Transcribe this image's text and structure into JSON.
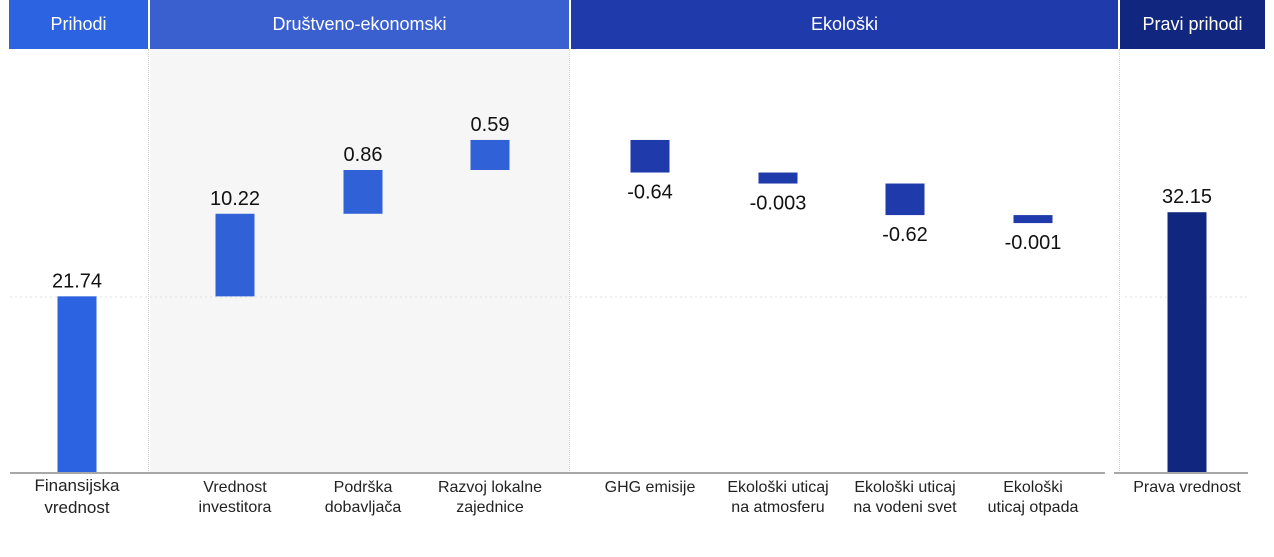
{
  "headers": {
    "prihodi": "Prihodi",
    "drustveno": "Društveno-ekonomski",
    "ekoloski": "Ekološki",
    "pravi": "Pravi prihodi"
  },
  "colors": {
    "prihodi": "#2b63e0",
    "drustveno": "#3a5fcf",
    "ekoloski": "#1f3aaa",
    "pravi": "#10267f",
    "bar_financial": "#2b63e0",
    "bar_socio": "#3061d6",
    "bar_eco": "#1f3aaa",
    "bar_true": "#10267f"
  },
  "chart_data": {
    "type": "bar",
    "subtype": "waterfall",
    "categories": [
      "Finansijska\nvrednost",
      "Vrednost\ninvestitora",
      "Podrška\ndobavljača",
      "Razvoj lokalne\nzajednice",
      "GHG emisije",
      "Ekološki uticaj\nna atmosferu",
      "Ekološki uticaj\nna vodeni svet",
      "Ekološki\nuticaj otpada",
      "Prava vrednost"
    ],
    "groups": [
      "Prihodi",
      "Društveno-ekonomski",
      "Društveno-ekonomski",
      "Društveno-ekonomski",
      "Ekološki",
      "Ekološki",
      "Ekološki",
      "Ekološki",
      "Pravi prihodi"
    ],
    "values": [
      21.74,
      10.22,
      0.86,
      0.59,
      -0.64,
      -0.003,
      -0.62,
      -0.001,
      32.15
    ],
    "labels": [
      "21.74",
      "10.22",
      "0.86",
      "0.59",
      "-0.64",
      "-0.003",
      "-0.62",
      "-0.001",
      "32.15"
    ],
    "kinds": [
      "total",
      "delta",
      "delta",
      "delta",
      "delta",
      "delta",
      "delta",
      "delta",
      "total"
    ]
  }
}
